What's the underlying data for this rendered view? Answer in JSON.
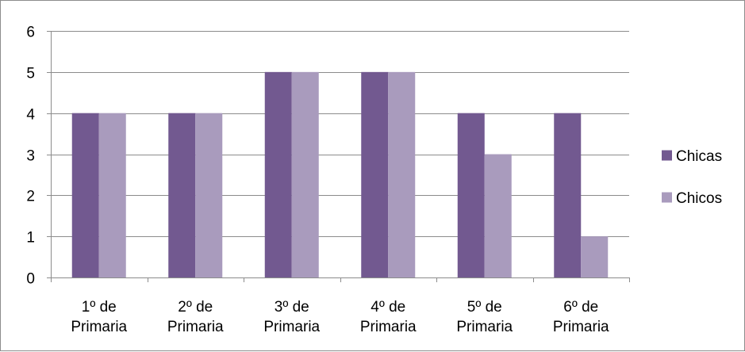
{
  "chart_data": {
    "type": "bar",
    "title": "",
    "xlabel": "",
    "ylabel": "",
    "ylim": [
      0,
      6
    ],
    "yticks": [
      0,
      1,
      2,
      3,
      4,
      5,
      6
    ],
    "grid": true,
    "legend_position": "right",
    "categories": [
      [
        "1º de",
        "Primaria"
      ],
      [
        "2º de",
        "Primaria"
      ],
      [
        "3º de",
        "Primaria"
      ],
      [
        "4º de",
        "Primaria"
      ],
      [
        "5º de",
        "Primaria"
      ],
      [
        "6º de",
        "Primaria"
      ]
    ],
    "series": [
      {
        "name": "Chicas",
        "color": "#725990",
        "values": [
          4,
          4,
          5,
          5,
          4,
          4
        ]
      },
      {
        "name": "Chicos",
        "color": "#A99BBD",
        "values": [
          4,
          4,
          5,
          5,
          3,
          1
        ]
      }
    ]
  }
}
